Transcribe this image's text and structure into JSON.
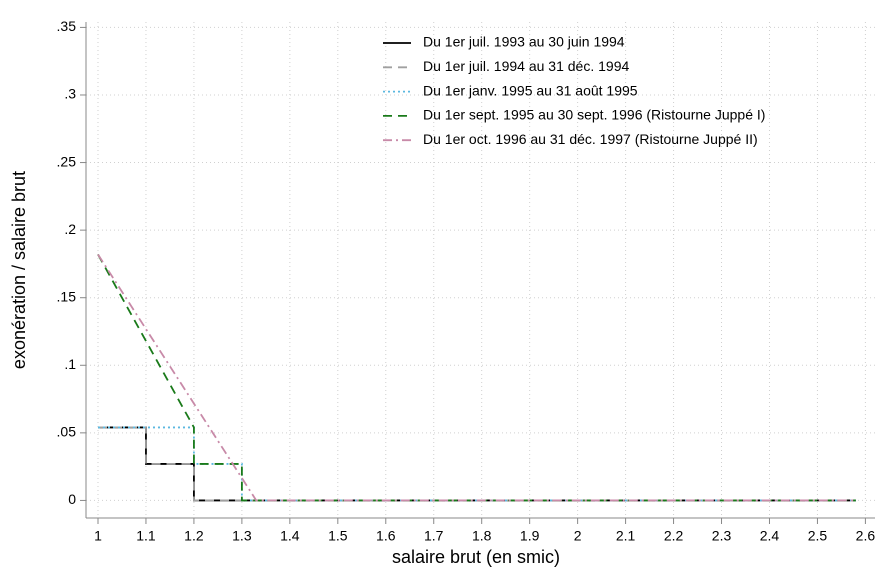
{
  "chart_data": {
    "type": "line",
    "x_label": "salaire brut (en smic)",
    "y_label": "exonération / salaire brut",
    "xlim": [
      0.975,
      2.62
    ],
    "ylim": [
      -0.013,
      0.354
    ],
    "xticks": [
      1,
      1.1,
      1.2,
      1.3,
      1.4,
      1.5,
      1.6,
      1.7,
      1.8,
      1.9,
      2,
      2.1,
      2.2,
      2.3,
      2.4,
      2.5,
      2.6
    ],
    "yticks": [
      0,
      {
        "value": 0.05,
        "label": ".05"
      },
      {
        "value": 0.1,
        "label": ".1"
      },
      {
        "value": 0.15,
        "label": ".15"
      },
      {
        "value": 0.2,
        "label": ".2"
      },
      {
        "value": 0.25,
        "label": ".25"
      },
      {
        "value": 0.3,
        "label": ".3"
      },
      {
        "value": 0.35,
        "label": ".35"
      }
    ],
    "grid": true,
    "legend": "top",
    "series": [
      {
        "name": "Du 1er juil. 1993 au 30 juin 1994",
        "color": "#000000",
        "linestyle": "solid",
        "x": [
          1,
          1.1,
          1.1,
          1.2,
          1.2,
          2.58
        ],
        "values": [
          0.054,
          0.054,
          0.027,
          0.027,
          0,
          0
        ]
      },
      {
        "name": "Du 1er juil. 1994 au 31 déc. 1994",
        "color": "#a0a0a0",
        "linestyle": "dashed",
        "x": [
          1,
          1.1,
          1.1,
          1.2,
          1.2,
          2.58
        ],
        "values": [
          0.054,
          0.054,
          0.027,
          0.027,
          0,
          0
        ]
      },
      {
        "name": "Du 1er janv. 1995 au 31 août 1995",
        "color": "#5bb8e0",
        "linestyle": "dotted",
        "x": [
          1,
          1.2,
          1.2,
          1.3,
          1.3,
          2.58
        ],
        "values": [
          0.054,
          0.054,
          0.027,
          0.027,
          0,
          0
        ]
      },
      {
        "name": "Du 1er sept. 1995 au 30 sept. 1996 (Ristourne Juppé I)",
        "color": "#1a7a1a",
        "linestyle": "dashed",
        "x": [
          1,
          1.2,
          1.2,
          1.3,
          1.3,
          2.58
        ],
        "values": [
          0.182,
          0.054,
          0.027,
          0.027,
          0,
          0
        ]
      },
      {
        "name": "Du 1er oct. 1996 au 31 déc. 1997 (Ristourne Juppé II)",
        "color": "#c88aa8",
        "linestyle": "dashdot",
        "x": [
          1,
          1.33,
          2.58
        ],
        "values": [
          0.182,
          0,
          0
        ]
      }
    ]
  }
}
